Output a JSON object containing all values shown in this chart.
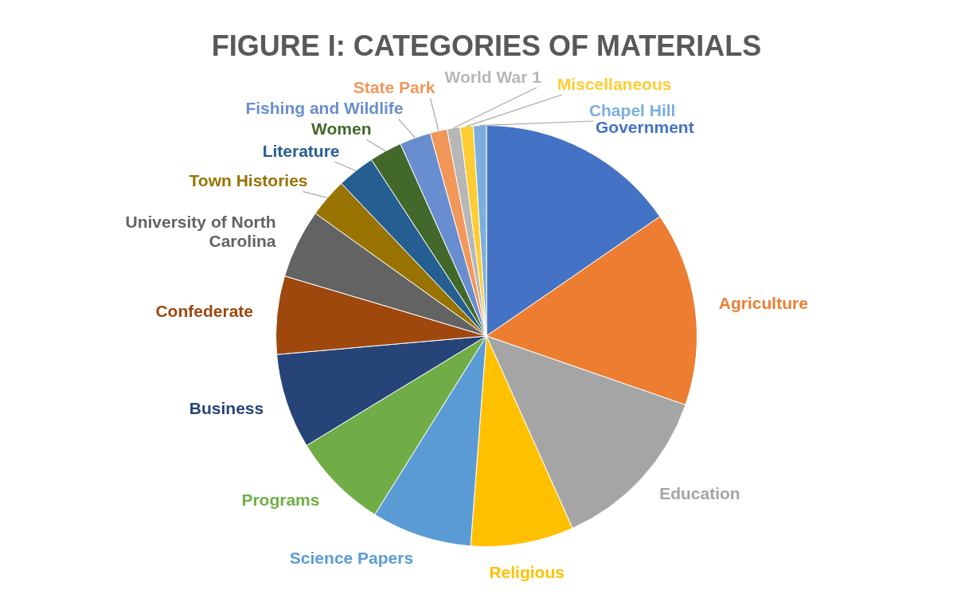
{
  "chart_data": {
    "type": "pie",
    "title": "FIGURE I: CATEGORIES OF MATERIALS",
    "categories": [
      "Government",
      "Agriculture",
      "Education",
      "Religious",
      "Science Papers",
      "Programs",
      "Business",
      "Confederate",
      "University of North Carolina",
      "Town Histories",
      "Literature",
      "Women",
      "Fishing and Wildlife",
      "State Park",
      "World War 1",
      "Miscellaneous",
      "Chapel Hill"
    ],
    "values": [
      15.4,
      14.9,
      13.0,
      7.9,
      7.7,
      7.4,
      7.3,
      6.0,
      5.3,
      3.0,
      2.9,
      2.5,
      2.4,
      1.3,
      1.0,
      1.0,
      1.0
    ],
    "colors": [
      "#4472c4",
      "#ed7d31",
      "#a5a5a5",
      "#ffc000",
      "#5b9bd5",
      "#70ad47",
      "#264478",
      "#9e480e",
      "#636363",
      "#997300",
      "#255e91",
      "#43682b",
      "#698ed0",
      "#f1975a",
      "#b7b7b7",
      "#ffcd33",
      "#7cafdd"
    ],
    "legend": false
  }
}
